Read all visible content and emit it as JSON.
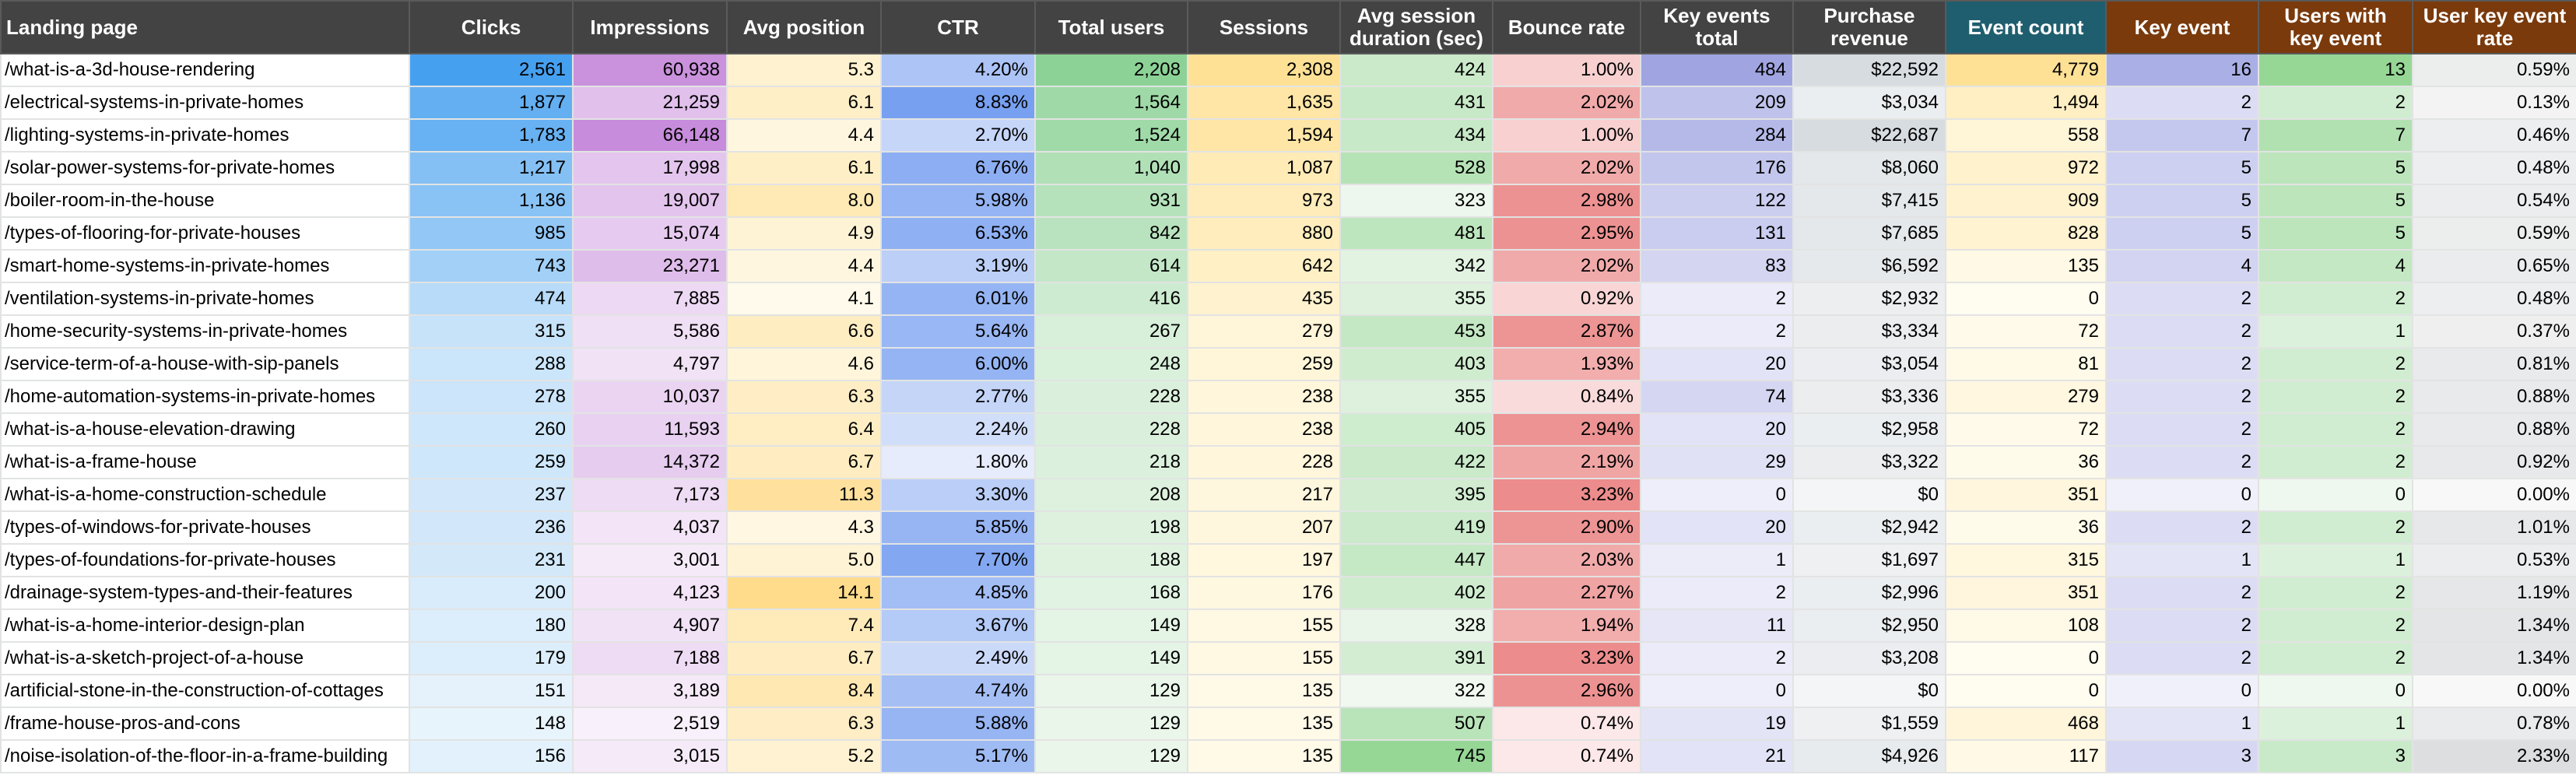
{
  "columns": [
    {
      "key": "page",
      "label": "Landing page",
      "bg": "#434343"
    },
    {
      "key": "clicks",
      "label": "Clicks",
      "bg": "#434343"
    },
    {
      "key": "impressions",
      "label": "Impressions",
      "bg": "#434343"
    },
    {
      "key": "avg_position",
      "label": "Avg position",
      "bg": "#434343"
    },
    {
      "key": "ctr",
      "label": "CTR",
      "bg": "#434343"
    },
    {
      "key": "total_users",
      "label": "Total users",
      "bg": "#434343"
    },
    {
      "key": "sessions",
      "label": "Sessions",
      "bg": "#434343"
    },
    {
      "key": "avg_session_duration",
      "label": "Avg session duration (sec)",
      "bg": "#434343"
    },
    {
      "key": "bounce_rate",
      "label": "Bounce rate",
      "bg": "#434343"
    },
    {
      "key": "key_events_total",
      "label": "Key events total",
      "bg": "#434343"
    },
    {
      "key": "purchase_revenue",
      "label": "Purchase revenue",
      "bg": "#434343"
    },
    {
      "key": "event_count",
      "label": "Event count",
      "bg": "#1f5e6e"
    },
    {
      "key": "key_event",
      "label": "Key event",
      "bg": "#7a3a0c"
    },
    {
      "key": "users_with_key_event",
      "label": "Users with key event",
      "bg": "#7a3a0c"
    },
    {
      "key": "user_key_event_rate",
      "label": "User key event rate",
      "bg": "#7a3a0c"
    }
  ],
  "rows": [
    {
      "page": "/what-is-a-3d-house-rendering",
      "clicks": "2,561",
      "impressions": "60,938",
      "avg_position": "5.3",
      "ctr": "4.20%",
      "total_users": "2,208",
      "sessions": "2,308",
      "avg_session_duration": "424",
      "bounce_rate": "1.00%",
      "key_events_total": "484",
      "purchase_revenue": "$22,592",
      "event_count": "4,779",
      "key_event": "16",
      "users_with_key_event": "13",
      "user_key_event_rate": "0.59%"
    },
    {
      "page": "/electrical-systems-in-private-homes",
      "clicks": "1,877",
      "impressions": "21,259",
      "avg_position": "6.1",
      "ctr": "8.83%",
      "total_users": "1,564",
      "sessions": "1,635",
      "avg_session_duration": "431",
      "bounce_rate": "2.02%",
      "key_events_total": "209",
      "purchase_revenue": "$3,034",
      "event_count": "1,494",
      "key_event": "2",
      "users_with_key_event": "2",
      "user_key_event_rate": "0.13%"
    },
    {
      "page": "/lighting-systems-in-private-homes",
      "clicks": "1,783",
      "impressions": "66,148",
      "avg_position": "4.4",
      "ctr": "2.70%",
      "total_users": "1,524",
      "sessions": "1,594",
      "avg_session_duration": "434",
      "bounce_rate": "1.00%",
      "key_events_total": "284",
      "purchase_revenue": "$22,687",
      "event_count": "558",
      "key_event": "7",
      "users_with_key_event": "7",
      "user_key_event_rate": "0.46%"
    },
    {
      "page": "/solar-power-systems-for-private-homes",
      "clicks": "1,217",
      "impressions": "17,998",
      "avg_position": "6.1",
      "ctr": "6.76%",
      "total_users": "1,040",
      "sessions": "1,087",
      "avg_session_duration": "528",
      "bounce_rate": "2.02%",
      "key_events_total": "176",
      "purchase_revenue": "$8,060",
      "event_count": "972",
      "key_event": "5",
      "users_with_key_event": "5",
      "user_key_event_rate": "0.48%"
    },
    {
      "page": "/boiler-room-in-the-house",
      "clicks": "1,136",
      "impressions": "19,007",
      "avg_position": "8.0",
      "ctr": "5.98%",
      "total_users": "931",
      "sessions": "973",
      "avg_session_duration": "323",
      "bounce_rate": "2.98%",
      "key_events_total": "122",
      "purchase_revenue": "$7,415",
      "event_count": "909",
      "key_event": "5",
      "users_with_key_event": "5",
      "user_key_event_rate": "0.54%"
    },
    {
      "page": "/types-of-flooring-for-private-houses",
      "clicks": "985",
      "impressions": "15,074",
      "avg_position": "4.9",
      "ctr": "6.53%",
      "total_users": "842",
      "sessions": "880",
      "avg_session_duration": "481",
      "bounce_rate": "2.95%",
      "key_events_total": "131",
      "purchase_revenue": "$7,685",
      "event_count": "828",
      "key_event": "5",
      "users_with_key_event": "5",
      "user_key_event_rate": "0.59%"
    },
    {
      "page": "/smart-home-systems-in-private-homes",
      "clicks": "743",
      "impressions": "23,271",
      "avg_position": "4.4",
      "ctr": "3.19%",
      "total_users": "614",
      "sessions": "642",
      "avg_session_duration": "342",
      "bounce_rate": "2.02%",
      "key_events_total": "83",
      "purchase_revenue": "$6,592",
      "event_count": "135",
      "key_event": "4",
      "users_with_key_event": "4",
      "user_key_event_rate": "0.65%"
    },
    {
      "page": "/ventilation-systems-in-private-homes",
      "clicks": "474",
      "impressions": "7,885",
      "avg_position": "4.1",
      "ctr": "6.01%",
      "total_users": "416",
      "sessions": "435",
      "avg_session_duration": "355",
      "bounce_rate": "0.92%",
      "key_events_total": "2",
      "purchase_revenue": "$2,932",
      "event_count": "0",
      "key_event": "2",
      "users_with_key_event": "2",
      "user_key_event_rate": "0.48%"
    },
    {
      "page": "/home-security-systems-in-private-homes",
      "clicks": "315",
      "impressions": "5,586",
      "avg_position": "6.6",
      "ctr": "5.64%",
      "total_users": "267",
      "sessions": "279",
      "avg_session_duration": "453",
      "bounce_rate": "2.87%",
      "key_events_total": "2",
      "purchase_revenue": "$3,334",
      "event_count": "72",
      "key_event": "2",
      "users_with_key_event": "1",
      "user_key_event_rate": "0.37%"
    },
    {
      "page": "/service-term-of-a-house-with-sip-panels",
      "clicks": "288",
      "impressions": "4,797",
      "avg_position": "4.6",
      "ctr": "6.00%",
      "total_users": "248",
      "sessions": "259",
      "avg_session_duration": "403",
      "bounce_rate": "1.93%",
      "key_events_total": "20",
      "purchase_revenue": "$3,054",
      "event_count": "81",
      "key_event": "2",
      "users_with_key_event": "2",
      "user_key_event_rate": "0.81%"
    },
    {
      "page": "/home-automation-systems-in-private-homes",
      "clicks": "278",
      "impressions": "10,037",
      "avg_position": "6.3",
      "ctr": "2.77%",
      "total_users": "228",
      "sessions": "238",
      "avg_session_duration": "355",
      "bounce_rate": "0.84%",
      "key_events_total": "74",
      "purchase_revenue": "$3,336",
      "event_count": "279",
      "key_event": "2",
      "users_with_key_event": "2",
      "user_key_event_rate": "0.88%"
    },
    {
      "page": "/what-is-a-house-elevation-drawing",
      "clicks": "260",
      "impressions": "11,593",
      "avg_position": "6.4",
      "ctr": "2.24%",
      "total_users": "228",
      "sessions": "238",
      "avg_session_duration": "405",
      "bounce_rate": "2.94%",
      "key_events_total": "20",
      "purchase_revenue": "$2,958",
      "event_count": "72",
      "key_event": "2",
      "users_with_key_event": "2",
      "user_key_event_rate": "0.88%"
    },
    {
      "page": "/what-is-a-frame-house",
      "clicks": "259",
      "impressions": "14,372",
      "avg_position": "6.7",
      "ctr": "1.80%",
      "total_users": "218",
      "sessions": "228",
      "avg_session_duration": "422",
      "bounce_rate": "2.19%",
      "key_events_total": "29",
      "purchase_revenue": "$3,322",
      "event_count": "36",
      "key_event": "2",
      "users_with_key_event": "2",
      "user_key_event_rate": "0.92%"
    },
    {
      "page": "/what-is-a-home-construction-schedule",
      "clicks": "237",
      "impressions": "7,173",
      "avg_position": "11.3",
      "ctr": "3.30%",
      "total_users": "208",
      "sessions": "217",
      "avg_session_duration": "395",
      "bounce_rate": "3.23%",
      "key_events_total": "0",
      "purchase_revenue": "$0",
      "event_count": "351",
      "key_event": "0",
      "users_with_key_event": "0",
      "user_key_event_rate": "0.00%"
    },
    {
      "page": "/types-of-windows-for-private-houses",
      "clicks": "236",
      "impressions": "4,037",
      "avg_position": "4.3",
      "ctr": "5.85%",
      "total_users": "198",
      "sessions": "207",
      "avg_session_duration": "419",
      "bounce_rate": "2.90%",
      "key_events_total": "20",
      "purchase_revenue": "$2,942",
      "event_count": "36",
      "key_event": "2",
      "users_with_key_event": "2",
      "user_key_event_rate": "1.01%"
    },
    {
      "page": "/types-of-foundations-for-private-houses",
      "clicks": "231",
      "impressions": "3,001",
      "avg_position": "5.0",
      "ctr": "7.70%",
      "total_users": "188",
      "sessions": "197",
      "avg_session_duration": "447",
      "bounce_rate": "2.03%",
      "key_events_total": "1",
      "purchase_revenue": "$1,697",
      "event_count": "315",
      "key_event": "1",
      "users_with_key_event": "1",
      "user_key_event_rate": "0.53%"
    },
    {
      "page": "/drainage-system-types-and-their-features",
      "clicks": "200",
      "impressions": "4,123",
      "avg_position": "14.1",
      "ctr": "4.85%",
      "total_users": "168",
      "sessions": "176",
      "avg_session_duration": "402",
      "bounce_rate": "2.27%",
      "key_events_total": "2",
      "purchase_revenue": "$2,996",
      "event_count": "351",
      "key_event": "2",
      "users_with_key_event": "2",
      "user_key_event_rate": "1.19%"
    },
    {
      "page": "/what-is-a-home-interior-design-plan",
      "clicks": "180",
      "impressions": "4,907",
      "avg_position": "7.4",
      "ctr": "3.67%",
      "total_users": "149",
      "sessions": "155",
      "avg_session_duration": "328",
      "bounce_rate": "1.94%",
      "key_events_total": "11",
      "purchase_revenue": "$2,950",
      "event_count": "108",
      "key_event": "2",
      "users_with_key_event": "2",
      "user_key_event_rate": "1.34%"
    },
    {
      "page": "/what-is-a-sketch-project-of-a-house",
      "clicks": "179",
      "impressions": "7,188",
      "avg_position": "6.7",
      "ctr": "2.49%",
      "total_users": "149",
      "sessions": "155",
      "avg_session_duration": "391",
      "bounce_rate": "3.23%",
      "key_events_total": "2",
      "purchase_revenue": "$3,208",
      "event_count": "0",
      "key_event": "2",
      "users_with_key_event": "2",
      "user_key_event_rate": "1.34%"
    },
    {
      "page": "/artificial-stone-in-the-construction-of-cottages",
      "clicks": "151",
      "impressions": "3,189",
      "avg_position": "8.4",
      "ctr": "4.74%",
      "total_users": "129",
      "sessions": "135",
      "avg_session_duration": "322",
      "bounce_rate": "2.96%",
      "key_events_total": "0",
      "purchase_revenue": "$0",
      "event_count": "0",
      "key_event": "0",
      "users_with_key_event": "0",
      "user_key_event_rate": "0.00%"
    },
    {
      "page": "/frame-house-pros-and-cons",
      "clicks": "148",
      "impressions": "2,519",
      "avg_position": "6.3",
      "ctr": "5.88%",
      "total_users": "129",
      "sessions": "135",
      "avg_session_duration": "507",
      "bounce_rate": "0.74%",
      "key_events_total": "19",
      "purchase_revenue": "$1,559",
      "event_count": "468",
      "key_event": "1",
      "users_with_key_event": "1",
      "user_key_event_rate": "0.78%"
    },
    {
      "page": "/noise-isolation-of-the-floor-in-a-frame-building",
      "clicks": "156",
      "impressions": "3,015",
      "avg_position": "5.2",
      "ctr": "5.17%",
      "total_users": "129",
      "sessions": "135",
      "avg_session_duration": "745",
      "bounce_rate": "0.74%",
      "key_events_total": "21",
      "purchase_revenue": "$4,926",
      "event_count": "117",
      "key_event": "3",
      "users_with_key_event": "3",
      "user_key_event_rate": "2.33%"
    }
  ]
}
